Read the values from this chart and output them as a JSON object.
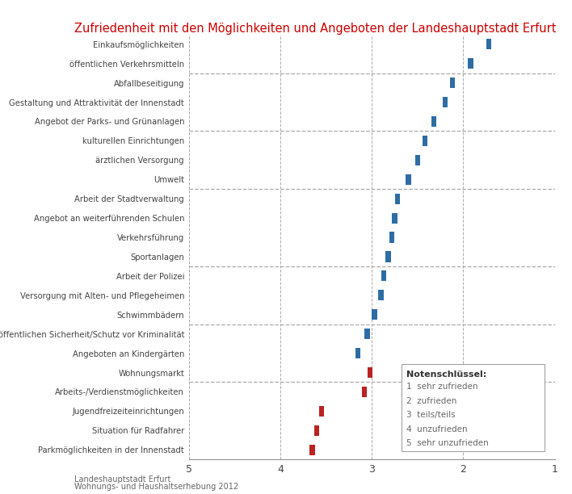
{
  "title": "Zufriedenheit mit den Möglichkeiten und Angeboten der Landeshauptstadt Erfurt",
  "title_color": "#cc0000",
  "categories": [
    "Einkaufsmöglichkeiten",
    "öffentlichen Verkehrsmitteln",
    "Abfallbeseitigung",
    "Gestaltung und Attraktivität der Innenstadt",
    "Angebot der Parks- und Grünanlagen",
    "kulturellen Einrichtungen",
    "ärztlichen Versorgung",
    "Umwelt",
    "Arbeit der Stadtverwaltung",
    "Angebot an weiterführenden Schulen",
    "Verkehrsführung",
    "Sportanlagen",
    "Arbeit der Polizei",
    "Versorgung mit Alten- und Pflegeheimen",
    "Schwimmbädern",
    "öffentlichen Sicherheit/Schutz vor Kriminalität",
    "Angeboten an Kindergärten",
    "Wohnungsmarkt",
    "Arbeits-/Verdienstmöglichkeiten",
    "Jugendfreizeiteinrichtungen",
    "Situation für Radfahrer",
    "Parkmöglichkeiten in der Innenstadt"
  ],
  "values": [
    1.72,
    1.92,
    2.12,
    2.2,
    2.32,
    2.42,
    2.5,
    2.6,
    2.72,
    2.75,
    2.78,
    2.82,
    2.87,
    2.9,
    2.97,
    3.05,
    3.15,
    3.02,
    3.08,
    3.55,
    3.6,
    3.65
  ],
  "bar_colors": [
    "#2e6da4",
    "#2e6da4",
    "#2e6da4",
    "#2e6da4",
    "#2e6da4",
    "#2e6da4",
    "#2e6da4",
    "#2e6da4",
    "#2e6da4",
    "#2e6da4",
    "#2e6da4",
    "#2e6da4",
    "#2e6da4",
    "#2e6da4",
    "#2e6da4",
    "#2e6da4",
    "#2e6da4",
    "#bb2222",
    "#bb2222",
    "#bb2222",
    "#bb2222",
    "#bb2222"
  ],
  "dashed_sep_after_index": [
    1,
    4,
    7,
    11,
    14,
    17
  ],
  "xlim_left": 5.0,
  "xlim_right": 1.0,
  "xticks": [
    5,
    4,
    3,
    2,
    1
  ],
  "footer_line1": "Landeshauptstadt Erfurt",
  "footer_line2": "Wohnungs- und Haushaltserhebung 2012",
  "legend_title": "Notenschlüssel:",
  "legend_items": [
    "1  sehr zufrieden",
    "2  zufrieden",
    "3  teils/teils",
    "4  unzufrieden",
    "5  sehr unzufrieden"
  ],
  "bar_width": 0.055,
  "bar_height": 0.55
}
